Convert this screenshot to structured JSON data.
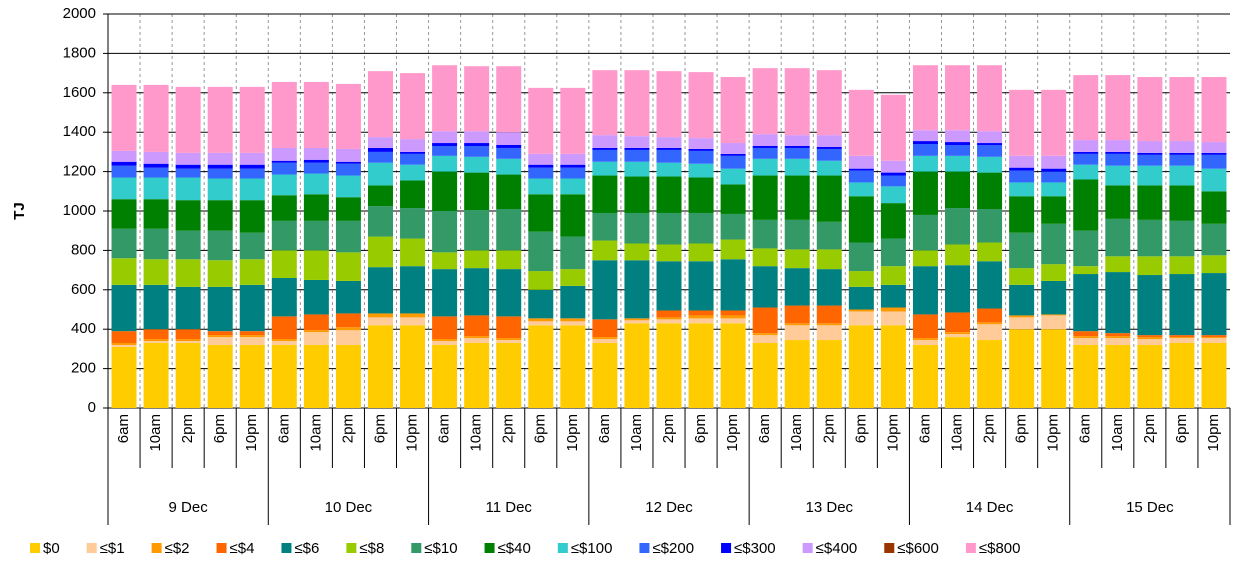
{
  "chart_data": {
    "type": "stacked_bar",
    "y_label": "TJ",
    "categories": [
      "6am",
      "10am",
      "2pm",
      "6pm",
      "10pm",
      "6am",
      "10am",
      "2pm",
      "6pm",
      "10pm",
      "6am",
      "10am",
      "2pm",
      "6pm",
      "10pm",
      "6am",
      "10am",
      "2pm",
      "6pm",
      "10pm",
      "6am",
      "10am",
      "2pm",
      "6pm",
      "10pm",
      "6am",
      "10am",
      "2pm",
      "6pm",
      "10pm",
      "6am",
      "10am",
      "2pm",
      "6pm",
      "10pm"
    ],
    "groups": [
      "9 Dec",
      "10 Dec",
      "11 Dec",
      "12 Dec",
      "13 Dec",
      "14 Dec",
      "15 Dec"
    ],
    "ylim": [
      0,
      2000
    ],
    "yticks": [
      0,
      200,
      400,
      600,
      800,
      1000,
      1200,
      1400,
      1600,
      1800,
      2000
    ],
    "grid": true,
    "series": [
      {
        "name": "$0",
        "color": "#ffcc00",
        "values": [
          310,
          330,
          330,
          320,
          320,
          320,
          320,
          320,
          420,
          420,
          320,
          330,
          330,
          420,
          420,
          330,
          430,
          430,
          430,
          430,
          330,
          345,
          345,
          420,
          420,
          320,
          360,
          345,
          400,
          400,
          320,
          320,
          320,
          330,
          330
        ]
      },
      {
        "name": "≤$1",
        "color": "#ffcc99",
        "values": [
          10,
          10,
          10,
          40,
          40,
          20,
          65,
          75,
          40,
          40,
          20,
          25,
          15,
          20,
          20,
          20,
          15,
          20,
          25,
          25,
          40,
          75,
          75,
          70,
          70,
          25,
          15,
          80,
          60,
          70,
          35,
          35,
          30,
          25,
          25
        ]
      },
      {
        "name": "≤$2",
        "color": "#ff9900",
        "values": [
          10,
          10,
          10,
          10,
          10,
          10,
          10,
          15,
          20,
          20,
          10,
          10,
          10,
          15,
          15,
          10,
          10,
          10,
          15,
          15,
          10,
          10,
          10,
          10,
          20,
          10,
          10,
          10,
          10,
          5,
          10,
          10,
          10,
          5,
          5
        ]
      },
      {
        "name": "≤$4",
        "color": "#ff6600",
        "values": [
          60,
          50,
          50,
          20,
          20,
          115,
          80,
          70,
          0,
          0,
          115,
          105,
          110,
          0,
          0,
          90,
          0,
          35,
          25,
          25,
          130,
          90,
          90,
          0,
          0,
          120,
          100,
          70,
          0,
          0,
          25,
          15,
          10,
          10,
          10
        ]
      },
      {
        "name": "≤$6",
        "color": "#008080",
        "values": [
          235,
          225,
          215,
          225,
          235,
          195,
          175,
          165,
          235,
          240,
          240,
          240,
          240,
          145,
          165,
          300,
          295,
          250,
          250,
          260,
          210,
          190,
          185,
          115,
          115,
          245,
          240,
          240,
          155,
          170,
          290,
          310,
          305,
          310,
          315
        ]
      },
      {
        "name": "≤$8",
        "color": "#99cc00",
        "values": [
          135,
          130,
          140,
          135,
          130,
          140,
          150,
          145,
          155,
          140,
          85,
          90,
          95,
          95,
          85,
          100,
          85,
          85,
          90,
          100,
          90,
          95,
          100,
          80,
          95,
          80,
          105,
          95,
          85,
          85,
          40,
          80,
          95,
          90,
          90
        ]
      },
      {
        "name": "≤$10",
        "color": "#339966",
        "values": [
          150,
          155,
          145,
          150,
          135,
          150,
          150,
          160,
          155,
          155,
          210,
          205,
          210,
          200,
          165,
          140,
          155,
          160,
          155,
          130,
          145,
          150,
          140,
          145,
          140,
          180,
          185,
          170,
          180,
          205,
          180,
          190,
          185,
          180,
          160
        ]
      },
      {
        "name": "≤$40",
        "color": "#008000",
        "values": [
          150,
          150,
          155,
          155,
          165,
          130,
          135,
          120,
          105,
          140,
          200,
          190,
          175,
          190,
          215,
          190,
          185,
          185,
          180,
          150,
          225,
          225,
          235,
          235,
          180,
          220,
          185,
          185,
          185,
          140,
          260,
          170,
          175,
          180,
          165
        ]
      },
      {
        "name": "≤$100",
        "color": "#33cccc",
        "values": [
          110,
          110,
          115,
          110,
          110,
          105,
          105,
          110,
          115,
          80,
          80,
          80,
          80,
          80,
          80,
          70,
          75,
          70,
          70,
          80,
          85,
          85,
          75,
          70,
          85,
          80,
          80,
          80,
          70,
          70,
          75,
          100,
          100,
          100,
          115
        ]
      },
      {
        "name": "≤$200",
        "color": "#3366ff",
        "values": [
          60,
          50,
          45,
          50,
          50,
          60,
          55,
          60,
          55,
          55,
          50,
          55,
          55,
          55,
          55,
          60,
          60,
          65,
          65,
          65,
          55,
          55,
          60,
          60,
          55,
          60,
          55,
          60,
          60,
          55,
          55,
          60,
          55,
          55,
          70
        ]
      },
      {
        "name": "≤$300",
        "color": "#0000ff",
        "values": [
          20,
          20,
          20,
          20,
          20,
          10,
          15,
          10,
          20,
          10,
          15,
          15,
          15,
          15,
          15,
          10,
          10,
          10,
          10,
          10,
          10,
          10,
          10,
          10,
          15,
          15,
          15,
          10,
          15,
          15,
          10,
          10,
          10,
          10,
          10
        ]
      },
      {
        "name": "≤$400",
        "color": "#cc99ff",
        "values": [
          55,
          60,
          60,
          60,
          60,
          65,
          60,
          65,
          55,
          65,
          60,
          60,
          65,
          55,
          55,
          65,
          60,
          55,
          55,
          55,
          60,
          55,
          60,
          65,
          60,
          55,
          60,
          60,
          60,
          65,
          60,
          60,
          60,
          60,
          55
        ]
      },
      {
        "name": "≤$600",
        "color": "#993300",
        "values": [
          0,
          0,
          0,
          0,
          0,
          0,
          0,
          0,
          0,
          0,
          0,
          0,
          0,
          0,
          0,
          0,
          0,
          0,
          0,
          0,
          0,
          0,
          0,
          0,
          0,
          0,
          0,
          0,
          0,
          0,
          0,
          0,
          0,
          0,
          0
        ]
      },
      {
        "name": "≤$800",
        "color": "#ff99cc",
        "values": [
          335,
          340,
          335,
          335,
          335,
          335,
          335,
          330,
          335,
          335,
          335,
          330,
          335,
          335,
          335,
          330,
          335,
          335,
          335,
          335,
          335,
          340,
          330,
          335,
          335,
          330,
          330,
          335,
          335,
          335,
          330,
          330,
          325,
          325,
          330
        ]
      }
    ]
  }
}
